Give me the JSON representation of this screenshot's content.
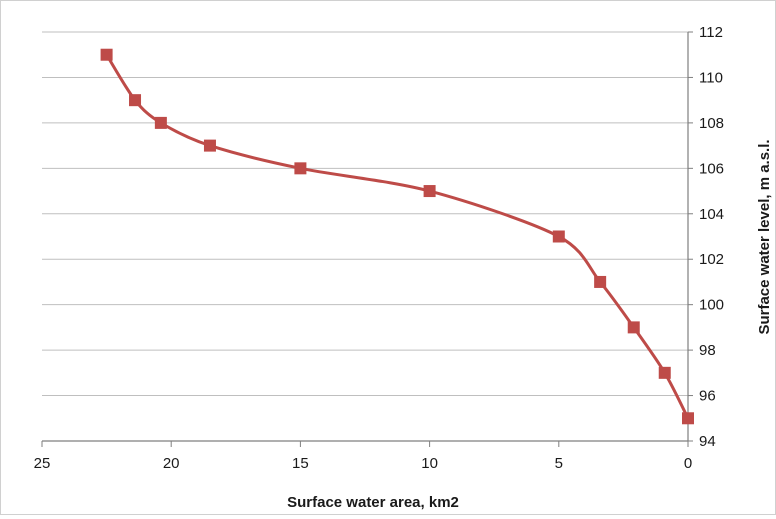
{
  "chart_data": {
    "type": "line",
    "xlabel": "Surface water area, km2",
    "ylabel": "Surface water level, m a.s.l.",
    "x_axis_reversed": true,
    "xlim": [
      0,
      25
    ],
    "ylim": [
      94,
      112
    ],
    "x_ticks": [
      25,
      20,
      15,
      10,
      5,
      0
    ],
    "y_ticks": [
      94,
      96,
      98,
      100,
      102,
      104,
      106,
      108,
      110,
      112
    ],
    "y_axis_position": "right",
    "grid": "horizontal",
    "legend": "none",
    "smooth": true,
    "line_color": "#be4b48",
    "marker": "square",
    "series": [
      {
        "points": [
          {
            "x": 22.5,
            "y": 111
          },
          {
            "x": 21.4,
            "y": 109
          },
          {
            "x": 20.4,
            "y": 108
          },
          {
            "x": 18.5,
            "y": 107
          },
          {
            "x": 15.0,
            "y": 106
          },
          {
            "x": 10.0,
            "y": 105
          },
          {
            "x": 5.0,
            "y": 103
          },
          {
            "x": 3.4,
            "y": 101
          },
          {
            "x": 2.1,
            "y": 99
          },
          {
            "x": 0.9,
            "y": 97
          },
          {
            "x": 0.0,
            "y": 95
          }
        ]
      }
    ]
  }
}
